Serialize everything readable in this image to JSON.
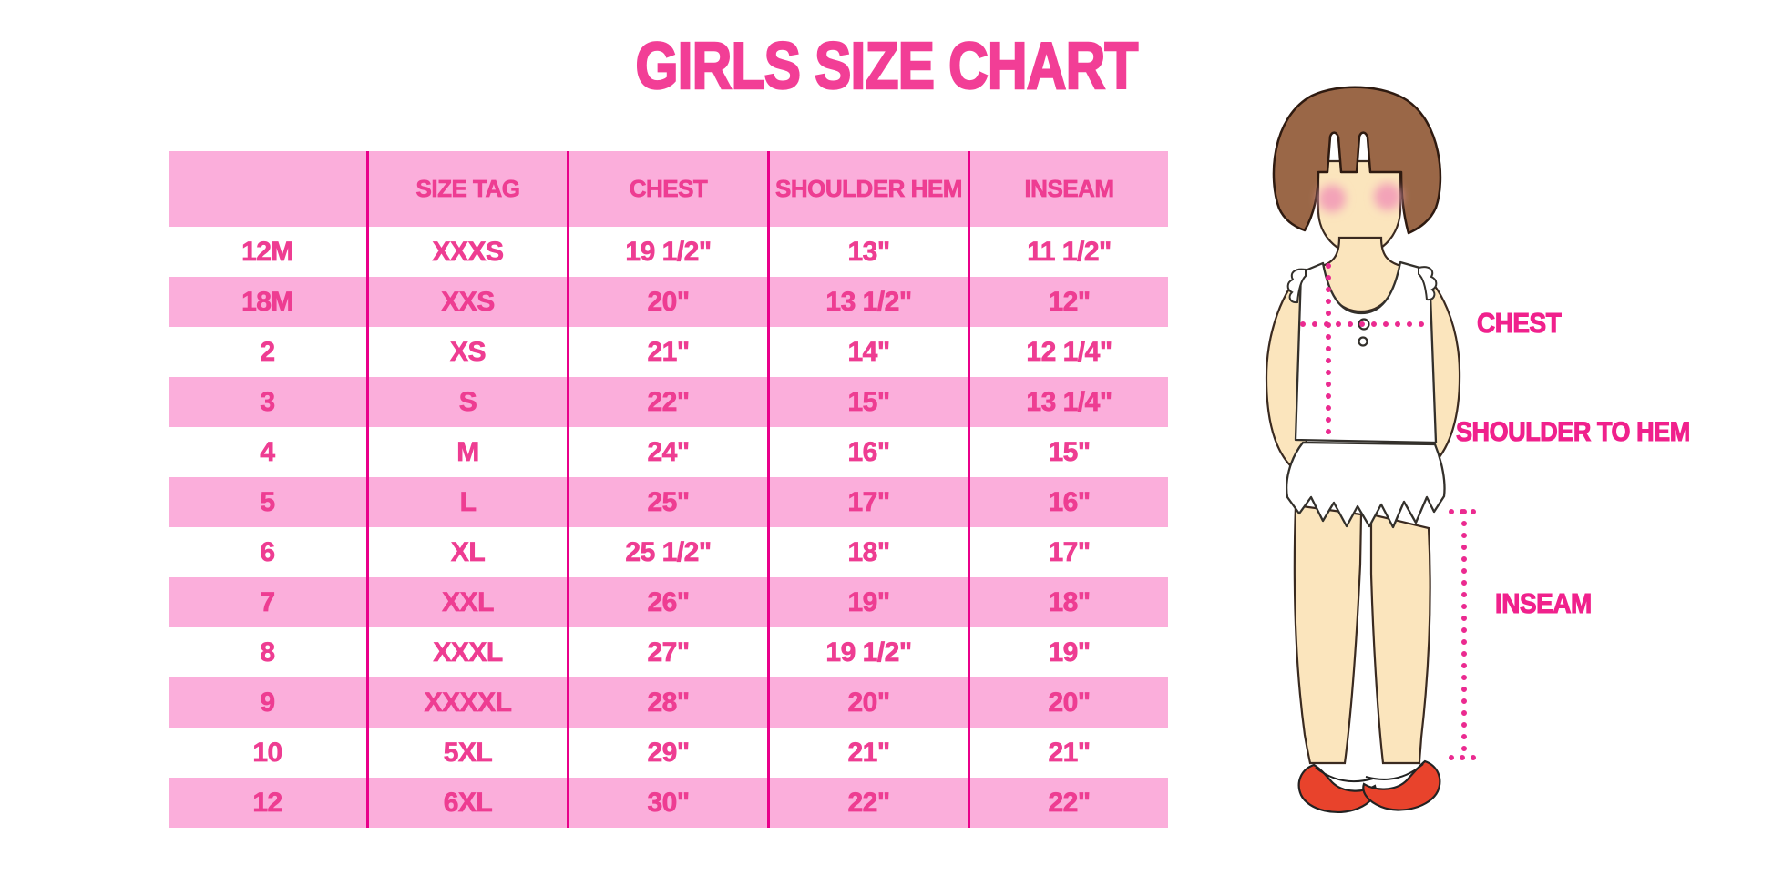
{
  "chart_data": {
    "type": "table",
    "title": "GIRLS SIZE CHART",
    "columns": [
      "",
      "SIZE TAG",
      "CHEST",
      "SHOULDER HEM",
      "INSEAM"
    ],
    "rows": [
      [
        "12M",
        "XXXS",
        "19 1/2\"",
        "13\"",
        "11 1/2\""
      ],
      [
        "18M",
        "XXS",
        "20\"",
        "13 1/2\"",
        "12\""
      ],
      [
        "2",
        "XS",
        "21\"",
        "14\"",
        "12 1/4\""
      ],
      [
        "3",
        "S",
        "22\"",
        "15\"",
        "13 1/4\""
      ],
      [
        "4",
        "M",
        "24\"",
        "16\"",
        "15\""
      ],
      [
        "5",
        "L",
        "25\"",
        "17\"",
        "16\""
      ],
      [
        "6",
        "XL",
        "25 1/2\"",
        "18\"",
        "17\""
      ],
      [
        "7",
        "XXL",
        "26\"",
        "19\"",
        "18\""
      ],
      [
        "8",
        "XXXL",
        "27\"",
        "19 1/2\"",
        "19\""
      ],
      [
        "9",
        "XXXXL",
        "28\"",
        "20\"",
        "20\""
      ],
      [
        "10",
        "5XL",
        "29\"",
        "21\"",
        "21\""
      ],
      [
        "12",
        "6XL",
        "30\"",
        "22\"",
        "22\""
      ]
    ],
    "row_striping": "alternating white and pink, first data row white",
    "legend_position": "none",
    "grid": "vertical magenta dividers only"
  },
  "figure": {
    "description": "illustration of a girl with measurement guide lines",
    "labels": {
      "chest": "CHEST",
      "shoulder_to_hem": "SHOULDER TO HEM",
      "inseam": "INSEAM"
    }
  },
  "colors": {
    "title_pink": "#F23E96",
    "table_text_pink": "#EE3D92",
    "band_pink": "#FBAEDB",
    "divider_magenta": "#E9008A",
    "label_pink": "#F0218C",
    "dot_pink": "#EB2A90",
    "hair_brown": "#9A6747",
    "skin": "#FBE5BD",
    "shoe_red": "#E8432C",
    "blush": "#F3A3B8"
  }
}
